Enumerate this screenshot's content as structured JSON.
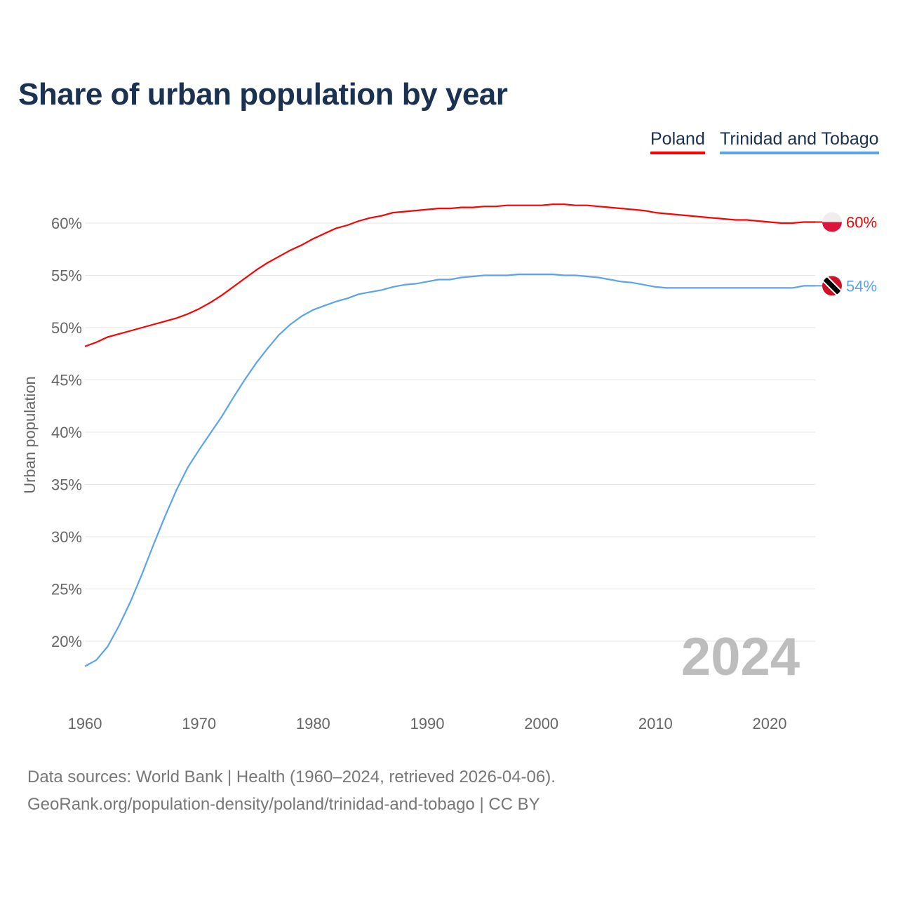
{
  "title": "Share of urban population by year",
  "footer": {
    "line1": "Data sources: World Bank | Health (1960–2024, retrieved 2026-04-06).",
    "line2": "GeoRank.org/population-density/poland/trinidad-and-tobago | CC BY"
  },
  "chart_data": {
    "type": "line",
    "title": "Share of urban population by year",
    "xlabel": "",
    "ylabel": "Urban population",
    "xlim": [
      1960,
      2024
    ],
    "ylim": [
      15,
      63
    ],
    "x_ticks": [
      "1960",
      "1970",
      "1980",
      "1990",
      "2000",
      "2010",
      "2020"
    ],
    "y_ticks": [
      "20%",
      "25%",
      "30%",
      "35%",
      "40%",
      "45%",
      "50%",
      "55%",
      "60%"
    ],
    "grid": true,
    "legend_position": "top-right",
    "year_watermark": "2024",
    "x": [
      1960,
      1961,
      1962,
      1963,
      1964,
      1965,
      1966,
      1967,
      1968,
      1969,
      1970,
      1971,
      1972,
      1973,
      1974,
      1975,
      1976,
      1977,
      1978,
      1979,
      1980,
      1981,
      1982,
      1983,
      1984,
      1985,
      1986,
      1987,
      1988,
      1989,
      1990,
      1991,
      1992,
      1993,
      1994,
      1995,
      1996,
      1997,
      1998,
      1999,
      2000,
      2001,
      2002,
      2003,
      2004,
      2005,
      2006,
      2007,
      2008,
      2009,
      2010,
      2011,
      2012,
      2013,
      2014,
      2015,
      2016,
      2017,
      2018,
      2019,
      2020,
      2021,
      2022,
      2023,
      2024
    ],
    "series": [
      {
        "name": "Poland",
        "color": "#ff0000",
        "end_label": "60%",
        "values": [
          48.2,
          48.6,
          49.1,
          49.4,
          49.7,
          50.0,
          50.3,
          50.6,
          50.9,
          51.3,
          51.8,
          52.4,
          53.1,
          53.9,
          54.7,
          55.5,
          56.2,
          56.8,
          57.4,
          57.9,
          58.5,
          59.0,
          59.5,
          59.8,
          60.2,
          60.5,
          60.7,
          61.0,
          61.1,
          61.2,
          61.3,
          61.4,
          61.4,
          61.5,
          61.5,
          61.6,
          61.6,
          61.7,
          61.7,
          61.7,
          61.7,
          61.8,
          61.8,
          61.7,
          61.7,
          61.6,
          61.5,
          61.4,
          61.3,
          61.2,
          61.0,
          60.9,
          60.8,
          60.7,
          60.6,
          60.5,
          60.4,
          60.3,
          60.3,
          60.2,
          60.1,
          60.0,
          60.0,
          60.1,
          60.1
        ]
      },
      {
        "name": "Trinidad and Tobago",
        "color": "#5ba4ea",
        "end_label": "54%",
        "values": [
          17.6,
          18.2,
          19.5,
          21.5,
          23.8,
          26.4,
          29.2,
          31.9,
          34.4,
          36.6,
          38.3,
          39.9,
          41.5,
          43.3,
          45.0,
          46.6,
          48.0,
          49.3,
          50.3,
          51.1,
          51.7,
          52.1,
          52.5,
          52.8,
          53.2,
          53.4,
          53.6,
          53.9,
          54.1,
          54.2,
          54.4,
          54.6,
          54.6,
          54.8,
          54.9,
          55.0,
          55.0,
          55.0,
          55.1,
          55.1,
          55.1,
          55.1,
          55.0,
          55.0,
          54.9,
          54.8,
          54.6,
          54.4,
          54.3,
          54.1,
          53.9,
          53.8,
          53.8,
          53.8,
          53.8,
          53.8,
          53.8,
          53.8,
          53.8,
          53.8,
          53.8,
          53.8,
          53.8,
          54.0,
          54.0
        ]
      }
    ]
  }
}
